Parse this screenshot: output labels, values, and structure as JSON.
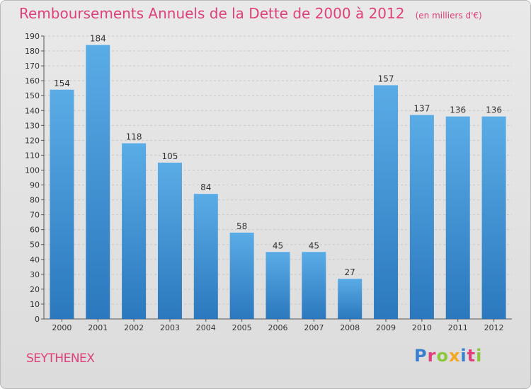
{
  "title": "Remboursements Annuels de la Dette de 2000 à 2012",
  "unit": "(en milliers d'€)",
  "city": "SEYTHENEX",
  "logo": {
    "text": "Proxiti",
    "colors": [
      "#3a7fcf",
      "#e0407a",
      "#8cc63f",
      "#f5a623",
      "#3a7fcf",
      "#e0407a",
      "#8cc63f"
    ]
  },
  "colors": {
    "title": "#e0407a",
    "bar_light": "#5aace6",
    "bar_dark": "#2b78be",
    "axis": "#555555",
    "grid": "#c8c8c8"
  },
  "chart_data": {
    "type": "bar",
    "title": "Remboursements Annuels de la Dette de 2000 à 2012",
    "unit": "(en milliers d'€)",
    "categories": [
      "2000",
      "2001",
      "2002",
      "2003",
      "2004",
      "2005",
      "2006",
      "2007",
      "2008",
      "2009",
      "2010",
      "2011",
      "2012"
    ],
    "values": [
      154,
      184,
      118,
      105,
      84,
      58,
      45,
      45,
      27,
      157,
      137,
      136,
      136
    ],
    "ylim": [
      0,
      190
    ],
    "yticks": [
      0,
      10,
      20,
      30,
      40,
      50,
      60,
      70,
      80,
      90,
      100,
      110,
      120,
      130,
      140,
      150,
      160,
      170,
      180,
      190
    ],
    "grid": true,
    "xlabel": "",
    "ylabel": ""
  }
}
